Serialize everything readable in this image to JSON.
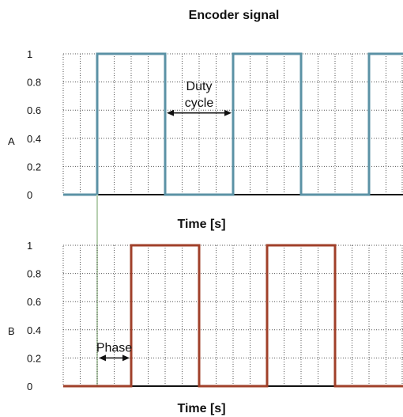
{
  "title": "Encoder signal",
  "chart_data": [
    {
      "type": "line",
      "name": "A",
      "xlabel": "Time [s]",
      "ylabel": "A",
      "ylim": [
        0,
        1
      ],
      "yticks": [
        "0",
        "0.2",
        "0.4",
        "0.6",
        "0.8",
        "1"
      ],
      "grid": true,
      "color": "#5b92a5",
      "x": [
        0,
        1,
        1,
        3,
        3,
        5,
        5,
        7,
        7,
        9,
        9,
        10
      ],
      "y": [
        0,
        0,
        1,
        1,
        0,
        0,
        1,
        1,
        0,
        0,
        1,
        1
      ],
      "annotation": {
        "lines": [
          "Duty",
          "cycle"
        ],
        "from": 3,
        "to": 5,
        "y": 0.58
      }
    },
    {
      "type": "line",
      "name": "B",
      "xlabel": "Time [s]",
      "ylabel": "B",
      "ylim": [
        0,
        1
      ],
      "yticks": [
        "0",
        "0.2",
        "0.4",
        "0.6",
        "0.8",
        "1"
      ],
      "grid": true,
      "color": "#a0402a",
      "x": [
        0,
        2,
        2,
        4,
        4,
        6,
        6,
        8,
        8,
        10
      ],
      "y": [
        0,
        0,
        1,
        1,
        0,
        0,
        1,
        1,
        0,
        0
      ],
      "annotation": {
        "lines": [
          "Phase"
        ],
        "from": 1,
        "to": 2,
        "y": 0.2
      }
    }
  ],
  "phase_marker_color": "#b7cfb0"
}
